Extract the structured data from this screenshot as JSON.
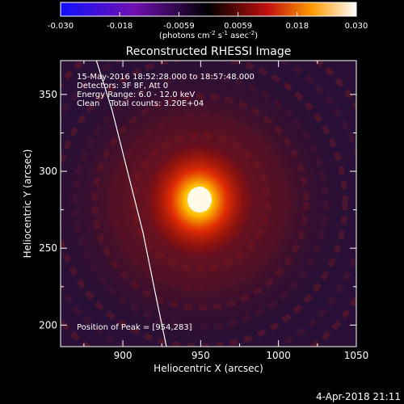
{
  "chart_data": {
    "type": "heatmap",
    "title": "Reconstructed RHESSI Image",
    "xlabel": "Heliocentric X (arcsec)",
    "ylabel": "Heliocentric Y (arcsec)",
    "xlim": [
      860,
      1050
    ],
    "ylim": [
      186,
      372
    ],
    "x_ticks": [
      900,
      950,
      1000,
      1050
    ],
    "y_ticks": [
      200,
      250,
      300,
      350
    ],
    "colorbar": {
      "range": [
        -0.03,
        0.03
      ],
      "ticks": [
        "-0.030",
        "-0.018",
        "-0.0059",
        "0.0059",
        "0.018",
        "0.030"
      ],
      "unit_prefix": "(photons cm",
      "unit_exp1": "-2",
      "unit_mid": " s",
      "unit_exp2": "-1",
      "unit_mid2": " asec",
      "unit_exp3": "-2",
      "unit_suffix": ")",
      "colormap": "blue-purple-red-yellow-white"
    },
    "annotations": [
      "15-May-2016 18:52:28.000 to 18:57:48.000",
      "Detectors: 3F 8F, Att 0",
      "Energy Range: 6.0 - 12.0 keV",
      "Clean    Total counts: 3.20E+04"
    ],
    "peak_label": "Position of Peak = [954,283]",
    "peak": {
      "x": 954,
      "y": 283
    },
    "limb": [
      [
        883,
        372
      ],
      [
        893,
        340
      ],
      [
        903,
        300
      ],
      [
        913,
        260
      ],
      [
        921,
        220
      ],
      [
        928,
        186
      ]
    ]
  },
  "timestamp": "4-Apr-2018 21:11"
}
